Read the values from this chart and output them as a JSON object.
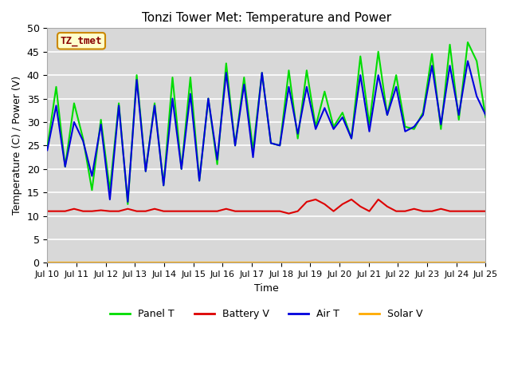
{
  "title": "Tonzi Tower Met: Temperature and Power",
  "xlabel": "Time",
  "ylabel": "Temperature (C) / Power (V)",
  "ylim": [
    0,
    50
  ],
  "xlim": [
    0,
    15
  ],
  "xtick_labels": [
    "Jul 10",
    "Jul 11",
    "Jul 12",
    "Jul 13",
    "Jul 14",
    "Jul 15",
    "Jul 16",
    "Jul 17",
    "Jul 18",
    "Jul 19",
    "Jul 20",
    "Jul 21",
    "Jul 22",
    "Jul 23",
    "Jul 24",
    "Jul 25"
  ],
  "ytick_values": [
    0,
    5,
    10,
    15,
    20,
    25,
    30,
    35,
    40,
    45,
    50
  ],
  "bg_color": "#d8d8d8",
  "fig_bg_color": "#ffffff",
  "annotation_text": "TZ_tmet",
  "annotation_bg": "#ffffcc",
  "annotation_border": "#cc8800",
  "annotation_text_color": "#880000",
  "legend_entries": [
    "Panel T",
    "Battery V",
    "Air T",
    "Solar V"
  ],
  "legend_colors": [
    "#00dd00",
    "#dd0000",
    "#0000dd",
    "#ffaa00"
  ],
  "panel_t": [
    24.5,
    37.5,
    20.5,
    34.0,
    26.5,
    15.5,
    30.5,
    15.5,
    34.0,
    12.5,
    40.0,
    19.5,
    34.0,
    16.5,
    39.5,
    20.0,
    39.5,
    17.5,
    35.0,
    21.0,
    42.5,
    25.0,
    39.5,
    24.0,
    40.5,
    25.5,
    25.0,
    41.0,
    26.5,
    41.0,
    29.0,
    36.5,
    29.0,
    32.0,
    26.5,
    44.0,
    29.5,
    45.0,
    31.5,
    40.0,
    29.0,
    28.5,
    32.0,
    44.5,
    28.5,
    46.5,
    30.5,
    47.0,
    43.0,
    31.0
  ],
  "air_t": [
    24.0,
    33.5,
    20.5,
    30.0,
    26.0,
    18.5,
    29.5,
    13.5,
    33.5,
    13.0,
    39.0,
    19.5,
    33.5,
    16.5,
    35.0,
    20.0,
    36.0,
    17.5,
    35.0,
    22.0,
    40.5,
    25.0,
    38.0,
    22.5,
    40.5,
    25.5,
    25.0,
    37.5,
    27.5,
    37.5,
    28.5,
    33.0,
    28.5,
    31.0,
    26.5,
    40.0,
    28.0,
    40.0,
    31.5,
    37.5,
    28.0,
    29.0,
    31.5,
    42.0,
    29.5,
    42.0,
    31.5,
    43.0,
    35.5,
    31.5
  ],
  "battery_v": [
    11.0,
    11.0,
    11.0,
    11.5,
    11.0,
    11.0,
    11.2,
    11.0,
    11.0,
    11.5,
    11.0,
    11.0,
    11.5,
    11.0,
    11.0,
    11.0,
    11.0,
    11.0,
    11.0,
    11.0,
    11.5,
    11.0,
    11.0,
    11.0,
    11.0,
    11.0,
    11.0,
    10.5,
    11.0,
    13.0,
    13.5,
    12.5,
    11.0,
    12.5,
    13.5,
    12.0,
    11.0,
    13.5,
    12.0,
    11.0,
    11.0,
    11.5,
    11.0,
    11.0,
    11.5,
    11.0,
    11.0,
    11.0,
    11.0,
    11.0
  ],
  "solar_v": [
    0.0,
    0.0,
    0.0,
    0.0,
    0.0,
    0.0,
    0.0,
    0.0,
    0.0,
    0.0,
    0.0,
    0.0,
    0.0,
    0.0,
    0.0,
    0.0,
    0.0,
    0.0,
    0.0,
    0.0,
    0.0,
    0.0,
    0.0,
    0.0,
    0.0,
    0.0,
    0.0,
    0.0,
    0.0,
    0.0,
    0.0,
    0.0,
    0.0,
    0.0,
    0.0,
    0.0,
    0.0,
    0.0,
    0.0,
    0.0,
    0.0,
    0.0,
    0.0,
    0.0,
    0.0,
    0.0,
    0.0,
    0.0,
    0.0,
    0.0
  ],
  "panel_color": "#00dd00",
  "air_color": "#0000dd",
  "battery_color": "#dd0000",
  "solar_color": "#ffaa00",
  "line_width": 1.5
}
